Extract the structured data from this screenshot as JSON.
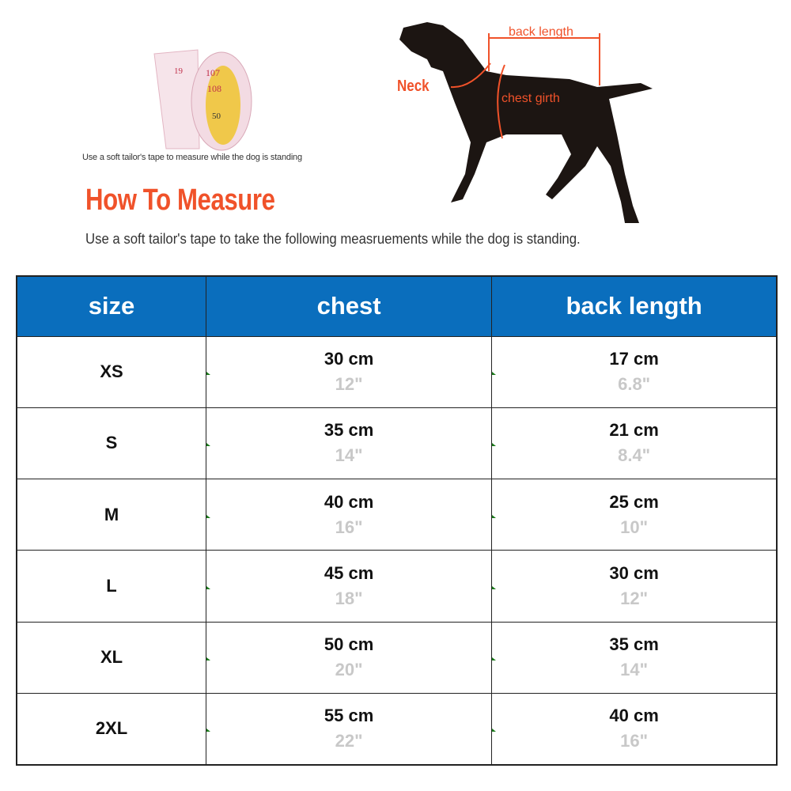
{
  "header": {
    "tape_caption": "Use a soft tailor's tape to measure while the dog is standing",
    "title": "How To Measure",
    "subtitle": "Use a soft tailor's tape to take the following measruements while the dog is standing.",
    "diagram_labels": {
      "neck": "Neck",
      "back_length": "back length",
      "chest_girth": "chest girth"
    },
    "accent_color": "#f0522a"
  },
  "table": {
    "header_color": "#0a6ebd",
    "columns": [
      "size",
      "chest",
      "back length"
    ],
    "rows": [
      {
        "size": "XS",
        "chest_cm": "30 cm",
        "chest_in": "12\"",
        "back_cm": "17 cm",
        "back_in": "6.8\""
      },
      {
        "size": "S",
        "chest_cm": "35 cm",
        "chest_in": "14\"",
        "back_cm": "21 cm",
        "back_in": "8.4\""
      },
      {
        "size": "M",
        "chest_cm": "40 cm",
        "chest_in": "16\"",
        "back_cm": "25 cm",
        "back_in": "10\""
      },
      {
        "size": "L",
        "chest_cm": "45 cm",
        "chest_in": "18\"",
        "back_cm": "30 cm",
        "back_in": "12\""
      },
      {
        "size": "XL",
        "chest_cm": "50 cm",
        "chest_in": "20\"",
        "back_cm": "35 cm",
        "back_in": "14\""
      },
      {
        "size": "2XL",
        "chest_cm": "55 cm",
        "chest_in": "22\"",
        "back_cm": "40 cm",
        "back_in": "16\""
      }
    ]
  }
}
